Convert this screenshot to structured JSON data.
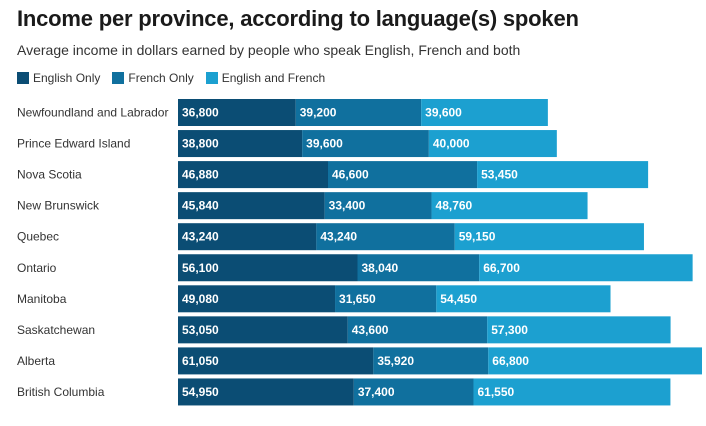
{
  "chart_data": {
    "type": "bar",
    "stacked": true,
    "orientation": "horizontal",
    "title": "Income per province, according to language(s) spoken",
    "subtitle": "Average income in dollars earned by people who speak English, French and both",
    "categories": [
      "Newfoundland and Labrador",
      "Prince Edward Island",
      "Nova Scotia",
      "New Brunswick",
      "Quebec",
      "Ontario",
      "Manitoba",
      "Saskatchewan",
      "Alberta",
      "British Columbia"
    ],
    "series": [
      {
        "name": "English Only",
        "color": "#0b4d74",
        "values": [
          36800,
          38800,
          46880,
          45840,
          43240,
          56100,
          49080,
          53050,
          61050,
          54950
        ],
        "labels": [
          "36,800",
          "38,800",
          "46,880",
          "45,840",
          "43,240",
          "56,100",
          "49,080",
          "53,050",
          "61,050",
          "54,950"
        ]
      },
      {
        "name": "French Only",
        "color": "#10709e",
        "values": [
          39200,
          39600,
          46600,
          33400,
          43240,
          38040,
          31650,
          43600,
          35920,
          37400
        ],
        "labels": [
          "39,200",
          "39,600",
          "46,600",
          "33,400",
          "43,240",
          "38,040",
          "31,650",
          "43,600",
          "35,920",
          "37,400"
        ]
      },
      {
        "name": "English and French",
        "color": "#1ca0d0",
        "values": [
          39600,
          40000,
          53450,
          48760,
          59150,
          66700,
          54450,
          57300,
          66800,
          61550
        ],
        "labels": [
          "39,600",
          "40,000",
          "53,450",
          "48,760",
          "59,150",
          "66,700",
          "54,450",
          "57,300",
          "66,800",
          "61,550"
        ]
      }
    ],
    "grid": false,
    "legend_position": "top-left"
  }
}
